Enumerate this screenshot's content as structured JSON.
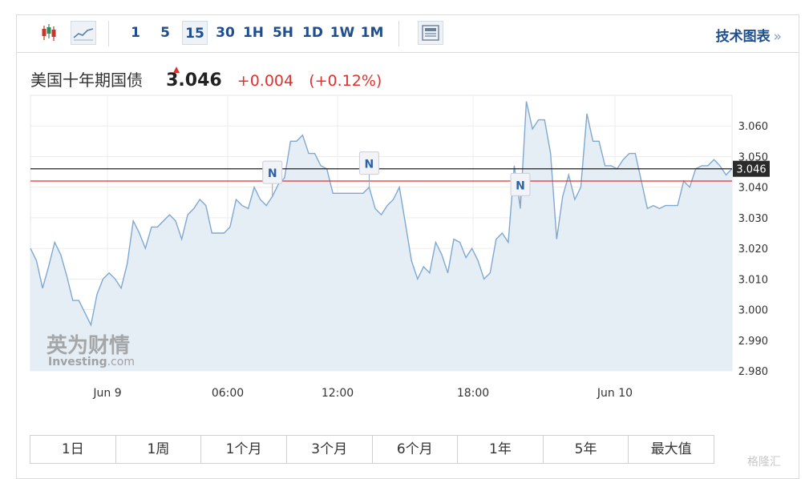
{
  "toolbar": {
    "timeframes": [
      "1",
      "5",
      "15",
      "30",
      "1H",
      "5H",
      "1D",
      "1W",
      "1M"
    ],
    "active_timeframe": "15",
    "tech_chart_label": "技术图表",
    "tech_chart_arrow": "»",
    "icons": [
      "candlestick-icon",
      "line-chart-icon",
      "news-panel-icon"
    ]
  },
  "instrument": {
    "name": "美国十年期国债",
    "price": "3.046",
    "change": "+0.004",
    "change_pct": "(+0.12%)"
  },
  "ranges": [
    "1日",
    "1周",
    "1个月",
    "3个月",
    "6个月",
    "1年",
    "5年",
    "最大值"
  ],
  "logo": {
    "cn": "英为财情",
    "en": "Investing",
    "suffix": ".com"
  },
  "watermark": "格隆汇",
  "colors": {
    "line": "#7fa8d1",
    "area": "#e6eef5",
    "current_line": "#222222",
    "ref_line": "#e03030",
    "up": "#e0312f",
    "link": "#1f4e8c"
  },
  "chart_data": {
    "type": "area",
    "title": "",
    "xlabel": "",
    "ylabel": "",
    "x_ticks": [
      "Jun 9",
      "06:00",
      "12:00",
      "18:00",
      "Jun 10"
    ],
    "y_ticks": [
      "3.060",
      "3.050",
      "3.040",
      "3.030",
      "3.020",
      "3.010",
      "3.000",
      "2.990",
      "2.980"
    ],
    "ylim": [
      2.98,
      3.07
    ],
    "current_value": 3.046,
    "current_label": "3.046",
    "reference_value": 3.042,
    "grid": true,
    "news_markers": [
      {
        "label": "N",
        "index": 40
      },
      {
        "label": "N",
        "index": 56
      },
      {
        "label": "N",
        "index": 81
      }
    ],
    "series": [
      {
        "values": [
          3.02,
          3.016,
          3.007,
          3.014,
          3.022,
          3.018,
          3.011,
          3.003,
          3.003,
          2.999,
          2.995,
          3.005,
          3.01,
          3.012,
          3.01,
          3.007,
          3.015,
          3.029,
          3.025,
          3.02,
          3.027,
          3.027,
          3.029,
          3.031,
          3.029,
          3.023,
          3.031,
          3.033,
          3.036,
          3.034,
          3.025,
          3.025,
          3.025,
          3.027,
          3.036,
          3.034,
          3.033,
          3.04,
          3.036,
          3.034,
          3.037,
          3.041,
          3.043,
          3.055,
          3.055,
          3.057,
          3.051,
          3.051,
          3.047,
          3.046,
          3.038,
          3.038,
          3.038,
          3.038,
          3.038,
          3.038,
          3.04,
          3.033,
          3.031,
          3.034,
          3.036,
          3.04,
          3.028,
          3.016,
          3.01,
          3.014,
          3.012,
          3.022,
          3.018,
          3.012,
          3.023,
          3.022,
          3.017,
          3.02,
          3.016,
          3.01,
          3.012,
          3.023,
          3.025,
          3.022,
          3.047,
          3.033,
          3.068,
          3.059,
          3.062,
          3.062,
          3.051,
          3.023,
          3.037,
          3.044,
          3.036,
          3.04,
          3.064,
          3.055,
          3.055,
          3.047,
          3.047,
          3.046,
          3.049,
          3.051,
          3.051,
          3.042,
          3.033,
          3.034,
          3.033,
          3.034,
          3.034,
          3.034,
          3.042,
          3.04,
          3.046,
          3.047,
          3.047,
          3.049,
          3.047,
          3.044,
          3.046
        ]
      }
    ]
  }
}
